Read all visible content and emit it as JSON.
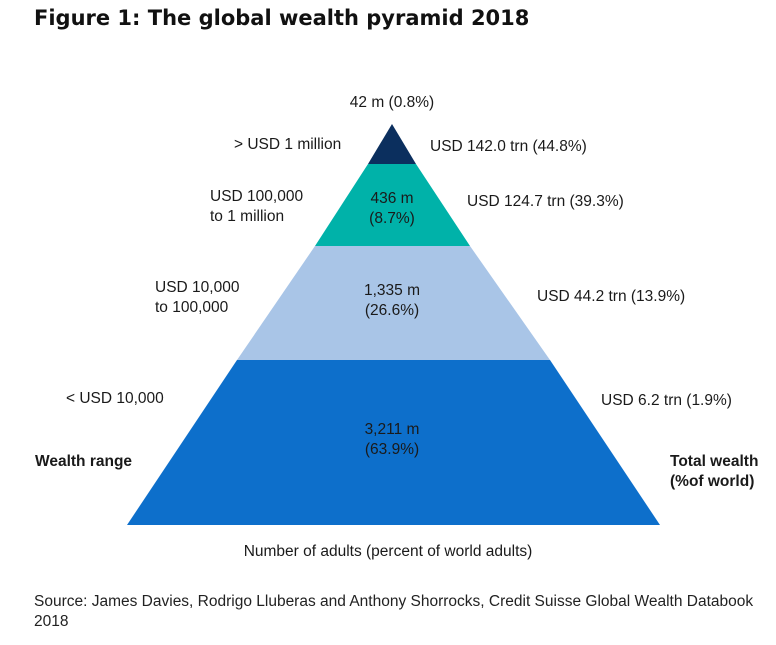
{
  "title": "Figure 1: The global wealth pyramid 2018",
  "chart_data": {
    "type": "pyramid",
    "title": "Figure 1: The global wealth pyramid 2018",
    "xlabel": "Number of adults (percent of world adults)",
    "left_axis_label": "Wealth range",
    "right_axis_label_line1": "Total wealth",
    "right_axis_label_line2": "(%of world)",
    "tiers": [
      {
        "range_line1": "> USD 1 million",
        "range_line2": "",
        "adults_m": 42,
        "adults_pct": 0.8,
        "adults_line1": "42 m (0.8%)",
        "adults_line2": "",
        "wealth_trn": 142.0,
        "wealth_pct": 44.8,
        "wealth_label": "USD 142.0 trn (44.8%)",
        "color": "#0b2f5e"
      },
      {
        "range_line1": "USD 100,000",
        "range_line2": "to 1 million",
        "adults_m": 436,
        "adults_pct": 8.7,
        "adults_line1": "436 m",
        "adults_line2": "(8.7%)",
        "wealth_trn": 124.7,
        "wealth_pct": 39.3,
        "wealth_label": "USD 124.7 trn (39.3%)",
        "color": "#00b2a9"
      },
      {
        "range_line1": "USD 10,000",
        "range_line2": "to 100,000",
        "adults_m": 1335,
        "adults_pct": 26.6,
        "adults_line1": "1,335 m",
        "adults_line2": "(26.6%)",
        "wealth_trn": 44.2,
        "wealth_pct": 13.9,
        "wealth_label": "USD 44.2 trn (13.9%)",
        "color": "#a9c5e7"
      },
      {
        "range_line1": "< USD 10,000",
        "range_line2": "",
        "adults_m": 3211,
        "adults_pct": 63.9,
        "adults_line1": "3,211 m",
        "adults_line2": "(63.9%)",
        "wealth_trn": 6.2,
        "wealth_pct": 1.9,
        "wealth_label": "USD 6.2 trn (1.9%)",
        "color": "#0d6fcb"
      }
    ]
  },
  "source": "Source: James Davies, Rodrigo Lluberas and Anthony Shorrocks, Credit Suisse Global Wealth Databook 2018"
}
